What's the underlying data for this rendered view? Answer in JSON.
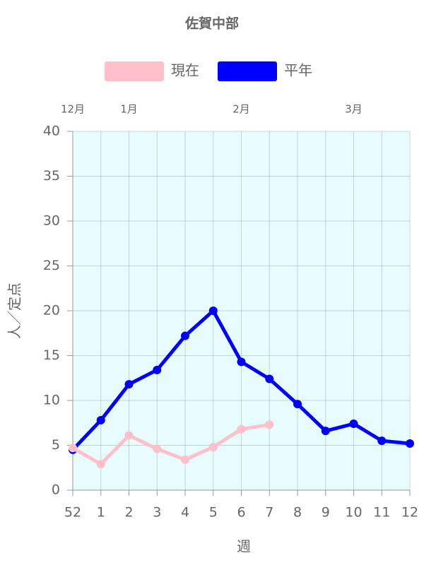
{
  "chart_data": {
    "type": "line",
    "title": "佐賀中部",
    "categories": [
      "52",
      "1",
      "2",
      "3",
      "4",
      "5",
      "6",
      "7",
      "8",
      "9",
      "10",
      "11",
      "12"
    ],
    "month_labels": [
      "12月",
      null,
      "1月",
      null,
      null,
      null,
      "2月",
      null,
      null,
      null,
      "3月",
      null,
      null
    ],
    "series": [
      {
        "name": "現在",
        "color": "#ffc0cb",
        "values": [
          4.7,
          2.9,
          6.1,
          4.6,
          3.4,
          4.8,
          6.8,
          7.3,
          null,
          null,
          null,
          null,
          null
        ]
      },
      {
        "name": "平年",
        "color": "#0000ff",
        "values": [
          4.5,
          7.8,
          11.8,
          13.4,
          17.2,
          20.0,
          14.3,
          12.4,
          9.6,
          6.6,
          7.4,
          5.5,
          5.2
        ]
      }
    ],
    "y_label": "人／定点",
    "x_label": "週",
    "ylim": [
      0,
      40
    ],
    "yticks": [
      0,
      5,
      10,
      15,
      20,
      25,
      30,
      35,
      40
    ],
    "grid": true,
    "background": "#e6fcfd"
  }
}
